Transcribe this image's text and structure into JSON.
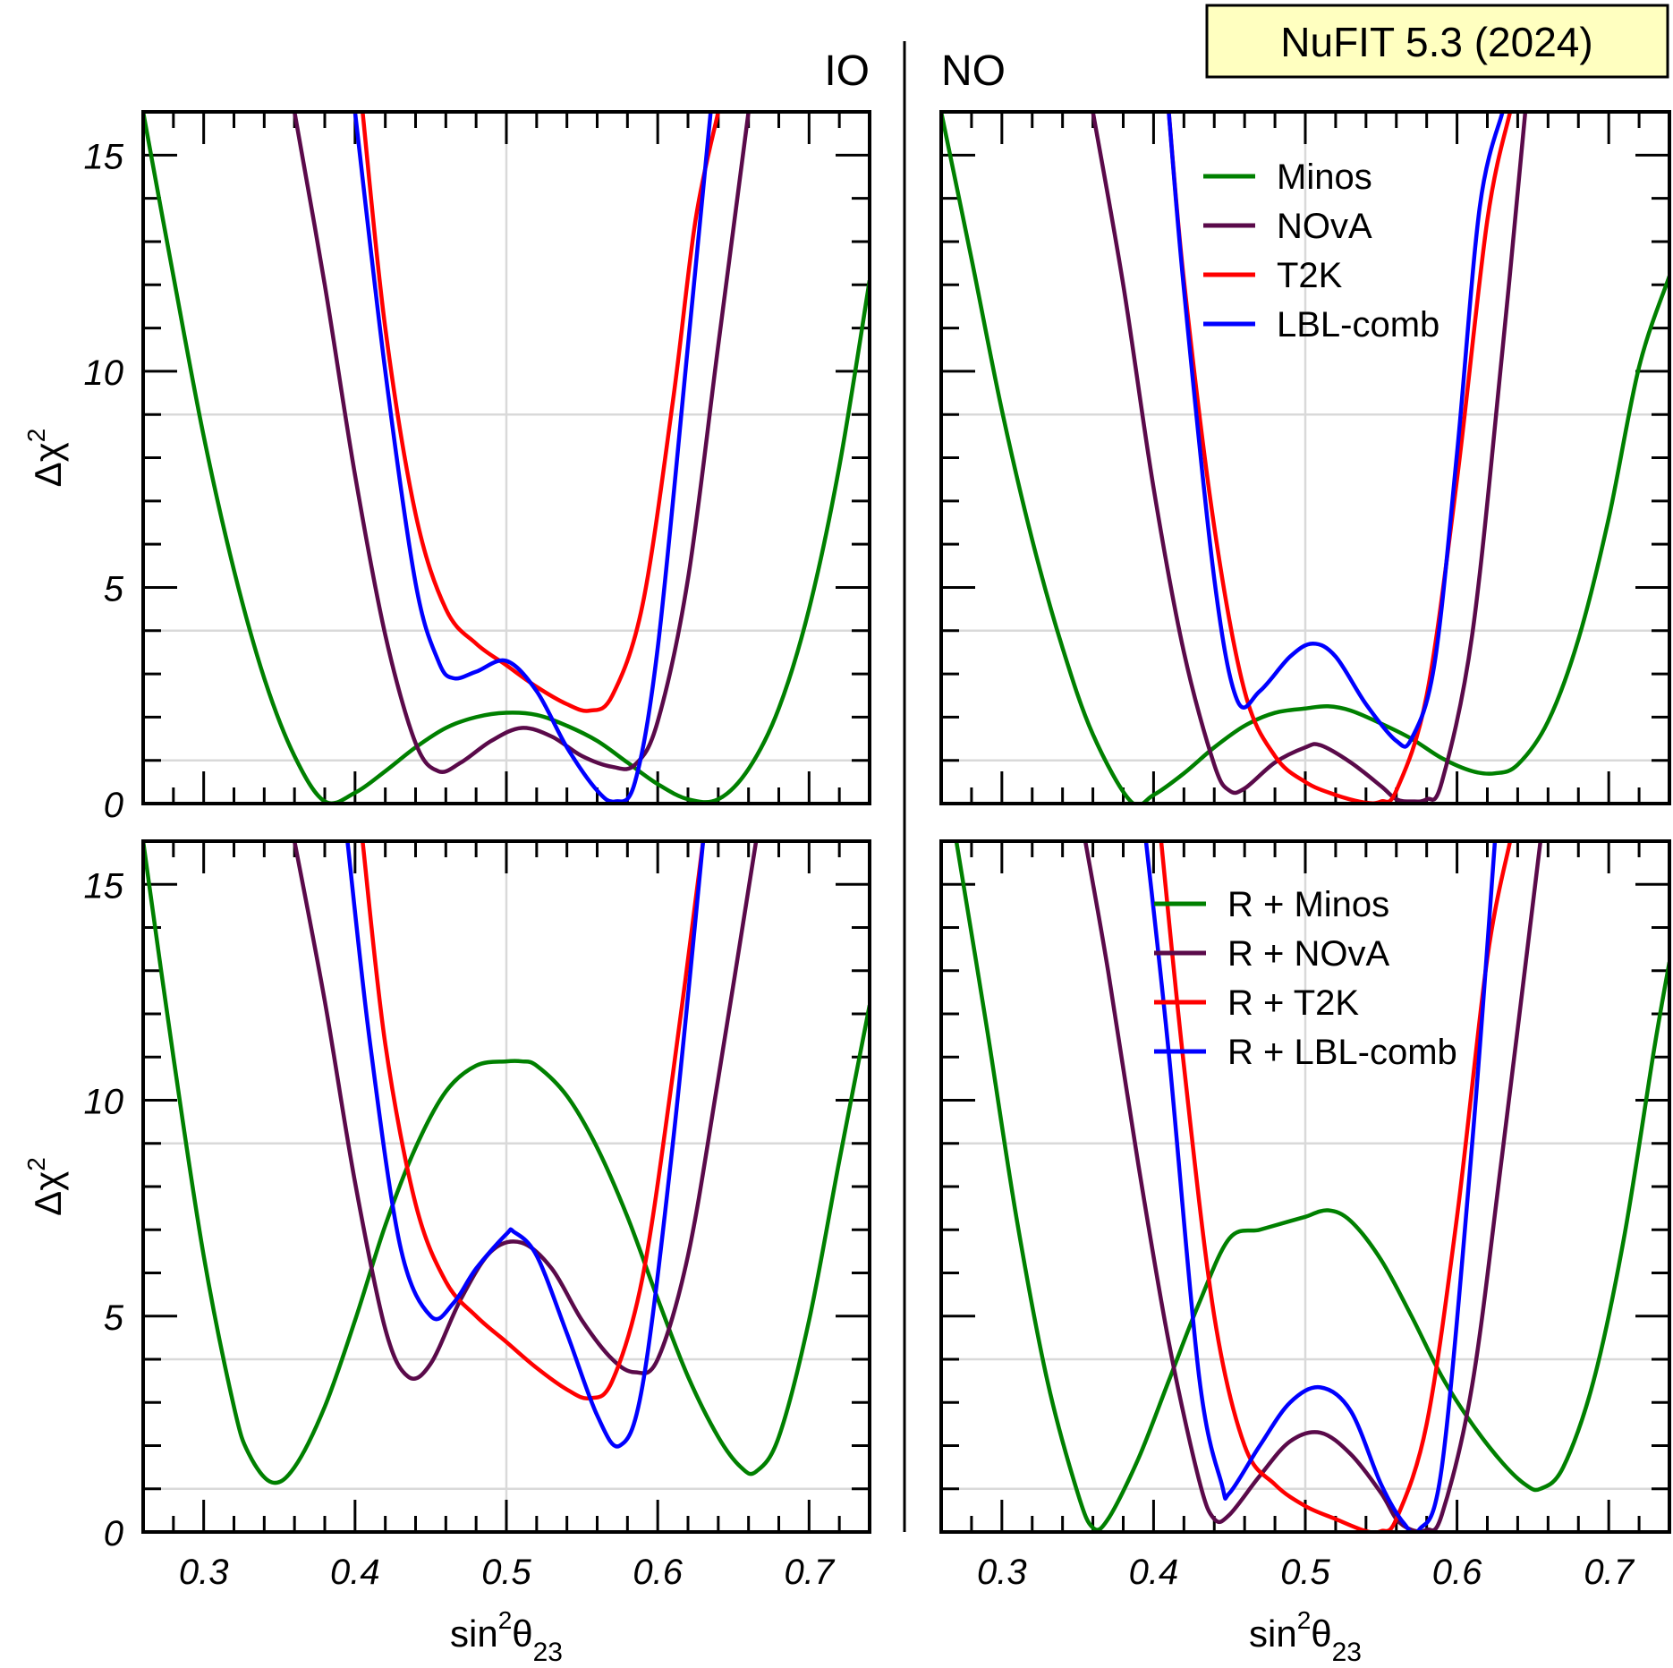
{
  "badge": "NuFIT 5.3 (2024)",
  "ordering_labels": {
    "left": "IO",
    "right": "NO"
  },
  "colors": {
    "Minos": "#008000",
    "NOvA": "#5a0a4a",
    "T2K": "#ff0000",
    "LBL-comb": "#0000ff",
    "grid": "#d9d9d9",
    "badge_bg": "#ffffc0"
  },
  "chart_data": [
    {
      "type": "line",
      "panel": "top-left",
      "ordering": "IO",
      "xlabel": "sin²θ23",
      "ylabel": "Δχ²",
      "xlim": [
        0.26,
        0.74
      ],
      "ylim": [
        0,
        16
      ],
      "xticks": [
        "0.3",
        "0.4",
        "0.5",
        "0.6",
        "0.7"
      ],
      "yticks": [
        "0",
        "5",
        "10",
        "15"
      ],
      "grid_y": [
        1,
        4,
        9
      ],
      "grid_x": [
        0.5
      ],
      "legend": [],
      "series": [
        {
          "name": "Minos",
          "x": [
            0.26,
            0.28,
            0.3,
            0.32,
            0.34,
            0.36,
            0.38,
            0.4,
            0.42,
            0.44,
            0.46,
            0.48,
            0.5,
            0.52,
            0.54,
            0.56,
            0.58,
            0.6,
            0.62,
            0.64,
            0.66,
            0.68,
            0.7,
            0.72,
            0.74
          ],
          "y": [
            16,
            12.2,
            8.5,
            5.4,
            2.9,
            1.1,
            0.05,
            0.25,
            0.75,
            1.3,
            1.75,
            2.0,
            2.1,
            2.05,
            1.8,
            1.45,
            0.95,
            0.45,
            0.1,
            0.1,
            0.8,
            2.2,
            4.5,
            7.8,
            12.1
          ]
        },
        {
          "name": "NOvA",
          "x": [
            0.36,
            0.38,
            0.4,
            0.42,
            0.44,
            0.455,
            0.47,
            0.49,
            0.51,
            0.53,
            0.55,
            0.57,
            0.585,
            0.6,
            0.62,
            0.64,
            0.66
          ],
          "y": [
            16,
            12,
            7.6,
            3.9,
            1.4,
            0.75,
            0.95,
            1.45,
            1.75,
            1.55,
            1.1,
            0.85,
            0.9,
            1.9,
            5.2,
            10.6,
            16
          ]
        },
        {
          "name": "T2K",
          "x": [
            0.405,
            0.42,
            0.44,
            0.46,
            0.48,
            0.5,
            0.52,
            0.54,
            0.555,
            0.57,
            0.59,
            0.61,
            0.625,
            0.64
          ],
          "y": [
            16,
            11,
            6.7,
            4.5,
            3.7,
            3.2,
            2.7,
            2.3,
            2.15,
            2.5,
            4.6,
            9.3,
            13.5,
            16
          ]
        },
        {
          "name": "LBL-comb",
          "x": [
            0.4,
            0.42,
            0.44,
            0.455,
            0.465,
            0.48,
            0.5,
            0.52,
            0.54,
            0.56,
            0.572,
            0.585,
            0.6,
            0.62,
            0.635
          ],
          "y": [
            16,
            10,
            5.1,
            3.3,
            2.9,
            3.05,
            3.3,
            2.6,
            1.3,
            0.3,
            0.05,
            0.5,
            3.6,
            10.6,
            16
          ]
        }
      ]
    },
    {
      "type": "line",
      "panel": "top-right",
      "ordering": "NO",
      "xlabel": "sin²θ23",
      "ylabel": "Δχ²",
      "xlim": [
        0.26,
        0.74
      ],
      "ylim": [
        0,
        16
      ],
      "xticks": [
        "0.3",
        "0.4",
        "0.5",
        "0.6",
        "0.7"
      ],
      "yticks": [
        "0",
        "5",
        "10",
        "15"
      ],
      "grid_y": [
        1,
        4,
        9
      ],
      "grid_x": [
        0.5
      ],
      "legend": [
        "Minos",
        "NOvA",
        "T2K",
        "LBL-comb"
      ],
      "series": [
        {
          "name": "Minos",
          "x": [
            0.26,
            0.28,
            0.3,
            0.32,
            0.34,
            0.36,
            0.385,
            0.4,
            0.42,
            0.44,
            0.46,
            0.48,
            0.5,
            0.515,
            0.53,
            0.55,
            0.57,
            0.59,
            0.61,
            0.625,
            0.64,
            0.66,
            0.68,
            0.7,
            0.72,
            0.74
          ],
          "y": [
            16,
            12.6,
            9.1,
            6.1,
            3.6,
            1.6,
            0.05,
            0.2,
            0.7,
            1.3,
            1.8,
            2.1,
            2.2,
            2.25,
            2.15,
            1.85,
            1.5,
            1.05,
            0.75,
            0.7,
            0.9,
            1.9,
            3.8,
            6.6,
            10.1,
            12.2
          ]
        },
        {
          "name": "NOvA",
          "x": [
            0.36,
            0.38,
            0.4,
            0.42,
            0.44,
            0.45,
            0.46,
            0.48,
            0.5,
            0.51,
            0.53,
            0.55,
            0.56,
            0.57,
            0.58,
            0.59,
            0.61,
            0.63,
            0.645
          ],
          "y": [
            16,
            12,
            7.3,
            3.5,
            0.9,
            0.3,
            0.35,
            0.95,
            1.3,
            1.35,
            0.95,
            0.4,
            0.1,
            0.05,
            0.1,
            0.5,
            3.9,
            10.5,
            16
          ]
        },
        {
          "name": "T2K",
          "x": [
            0.41,
            0.42,
            0.44,
            0.46,
            0.48,
            0.5,
            0.52,
            0.54,
            0.55,
            0.56,
            0.58,
            0.6,
            0.62,
            0.635
          ],
          "y": [
            16,
            12.1,
            6.4,
            2.6,
            1.1,
            0.5,
            0.2,
            0.02,
            0.05,
            0.3,
            2.5,
            7.5,
            13.5,
            16
          ]
        },
        {
          "name": "LBL-comb",
          "x": [
            0.41,
            0.42,
            0.44,
            0.455,
            0.47,
            0.49,
            0.505,
            0.52,
            0.54,
            0.56,
            0.57,
            0.585,
            0.6,
            0.615,
            0.63
          ],
          "y": [
            16,
            11.9,
            5.2,
            2.4,
            2.6,
            3.4,
            3.7,
            3.4,
            2.3,
            1.45,
            1.5,
            3.2,
            8.1,
            13.8,
            16
          ]
        }
      ]
    },
    {
      "type": "line",
      "panel": "bottom-left",
      "ordering": "IO",
      "xlabel": "sin²θ23",
      "ylabel": "Δχ²",
      "xlim": [
        0.26,
        0.74
      ],
      "ylim": [
        0,
        16
      ],
      "xticks": [
        "0.3",
        "0.4",
        "0.5",
        "0.6",
        "0.7"
      ],
      "yticks": [
        "0",
        "5",
        "10",
        "15"
      ],
      "grid_y": [
        1,
        4,
        9
      ],
      "grid_x": [
        0.5
      ],
      "legend": [],
      "series": [
        {
          "name": "R + Minos",
          "x": [
            0.26,
            0.28,
            0.3,
            0.32,
            0.33,
            0.345,
            0.36,
            0.38,
            0.4,
            0.42,
            0.44,
            0.46,
            0.48,
            0.5,
            0.51,
            0.52,
            0.54,
            0.56,
            0.58,
            0.6,
            0.62,
            0.64,
            0.655,
            0.665,
            0.68,
            0.7,
            0.72,
            0.74
          ],
          "y": [
            16,
            11,
            6.4,
            2.9,
            1.8,
            1.15,
            1.5,
            2.9,
            4.9,
            7.1,
            8.9,
            10.2,
            10.8,
            10.9,
            10.9,
            10.8,
            10.1,
            8.9,
            7.3,
            5.4,
            3.6,
            2.2,
            1.5,
            1.4,
            2.2,
            4.9,
            8.6,
            12.2
          ]
        },
        {
          "name": "R + NOvA",
          "x": [
            0.36,
            0.38,
            0.4,
            0.42,
            0.435,
            0.45,
            0.47,
            0.49,
            0.51,
            0.53,
            0.55,
            0.57,
            0.585,
            0.6,
            0.62,
            0.64,
            0.665
          ],
          "y": [
            16,
            12.3,
            8.1,
            4.7,
            3.6,
            3.9,
            5.4,
            6.5,
            6.7,
            6.1,
            4.9,
            4.0,
            3.7,
            4.0,
            6.4,
            10.5,
            16
          ]
        },
        {
          "name": "R + T2K",
          "x": [
            0.405,
            0.42,
            0.44,
            0.46,
            0.48,
            0.5,
            0.52,
            0.54,
            0.555,
            0.57,
            0.59,
            0.61,
            0.63
          ],
          "y": [
            16,
            11.3,
            7.6,
            5.8,
            5.0,
            4.4,
            3.8,
            3.3,
            3.1,
            3.5,
            5.9,
            10.6,
            16
          ]
        },
        {
          "name": "R + LBL-comb",
          "x": [
            0.395,
            0.41,
            0.43,
            0.45,
            0.465,
            0.48,
            0.5,
            0.505,
            0.52,
            0.54,
            0.56,
            0.575,
            0.59,
            0.61,
            0.63
          ],
          "y": [
            16,
            11.3,
            6.6,
            5.0,
            5.3,
            6.1,
            6.9,
            6.95,
            6.4,
            4.6,
            2.7,
            2.0,
            3.4,
            9.0,
            16
          ]
        }
      ]
    },
    {
      "type": "line",
      "panel": "bottom-right",
      "ordering": "NO",
      "xlabel": "sin²θ23",
      "ylabel": "Δχ²",
      "xlim": [
        0.26,
        0.74
      ],
      "ylim": [
        0,
        16
      ],
      "xticks": [
        "0.3",
        "0.4",
        "0.5",
        "0.6",
        "0.7"
      ],
      "yticks": [
        "0",
        "5",
        "10",
        "15"
      ],
      "grid_y": [
        1,
        4,
        9
      ],
      "grid_x": [
        0.5
      ],
      "legend": [
        "R + Minos",
        "R + NOvA",
        "R + T2K",
        "R + LBL-comb"
      ],
      "series": [
        {
          "name": "R + Minos",
          "x": [
            0.27,
            0.29,
            0.31,
            0.33,
            0.35,
            0.36,
            0.37,
            0.39,
            0.41,
            0.43,
            0.45,
            0.47,
            0.49,
            0.5,
            0.515,
            0.53,
            0.55,
            0.57,
            0.59,
            0.61,
            0.63,
            0.645,
            0.655,
            0.67,
            0.69,
            0.71,
            0.73,
            0.74
          ],
          "y": [
            16,
            11.7,
            7.2,
            3.5,
            0.9,
            0.1,
            0.3,
            1.7,
            3.5,
            5.3,
            6.8,
            7.0,
            7.2,
            7.3,
            7.45,
            7.2,
            6.3,
            5.0,
            3.6,
            2.5,
            1.6,
            1.1,
            1.0,
            1.5,
            3.5,
            6.8,
            11.2,
            13.2
          ]
        },
        {
          "name": "R + NOvA",
          "x": [
            0.355,
            0.37,
            0.39,
            0.41,
            0.43,
            0.44,
            0.45,
            0.47,
            0.49,
            0.51,
            0.53,
            0.55,
            0.56,
            0.57,
            0.58,
            0.59,
            0.61,
            0.63,
            0.655
          ],
          "y": [
            16,
            13,
            8.5,
            4.4,
            1.2,
            0.3,
            0.4,
            1.3,
            2.1,
            2.3,
            1.8,
            0.9,
            0.3,
            0.05,
            0.05,
            0.4,
            3.4,
            8.8,
            16
          ]
        },
        {
          "name": "R + T2K",
          "x": [
            0.405,
            0.42,
            0.44,
            0.46,
            0.48,
            0.5,
            0.52,
            0.54,
            0.55,
            0.56,
            0.58,
            0.6,
            0.62,
            0.635
          ],
          "y": [
            16,
            10.8,
            5.0,
            2.0,
            1.1,
            0.6,
            0.3,
            0.02,
            0.02,
            0.3,
            2.5,
            7.3,
            13.3,
            16
          ]
        },
        {
          "name": "R + LBL-comb",
          "x": [
            0.395,
            0.41,
            0.43,
            0.445,
            0.45,
            0.47,
            0.49,
            0.51,
            0.53,
            0.55,
            0.565,
            0.575,
            0.59,
            0.61,
            0.625
          ],
          "y": [
            16,
            11.1,
            3.6,
            1.1,
            0.9,
            2.0,
            3.0,
            3.35,
            2.8,
            1.1,
            0.2,
            0.05,
            1.5,
            9.0,
            16
          ]
        }
      ]
    }
  ]
}
